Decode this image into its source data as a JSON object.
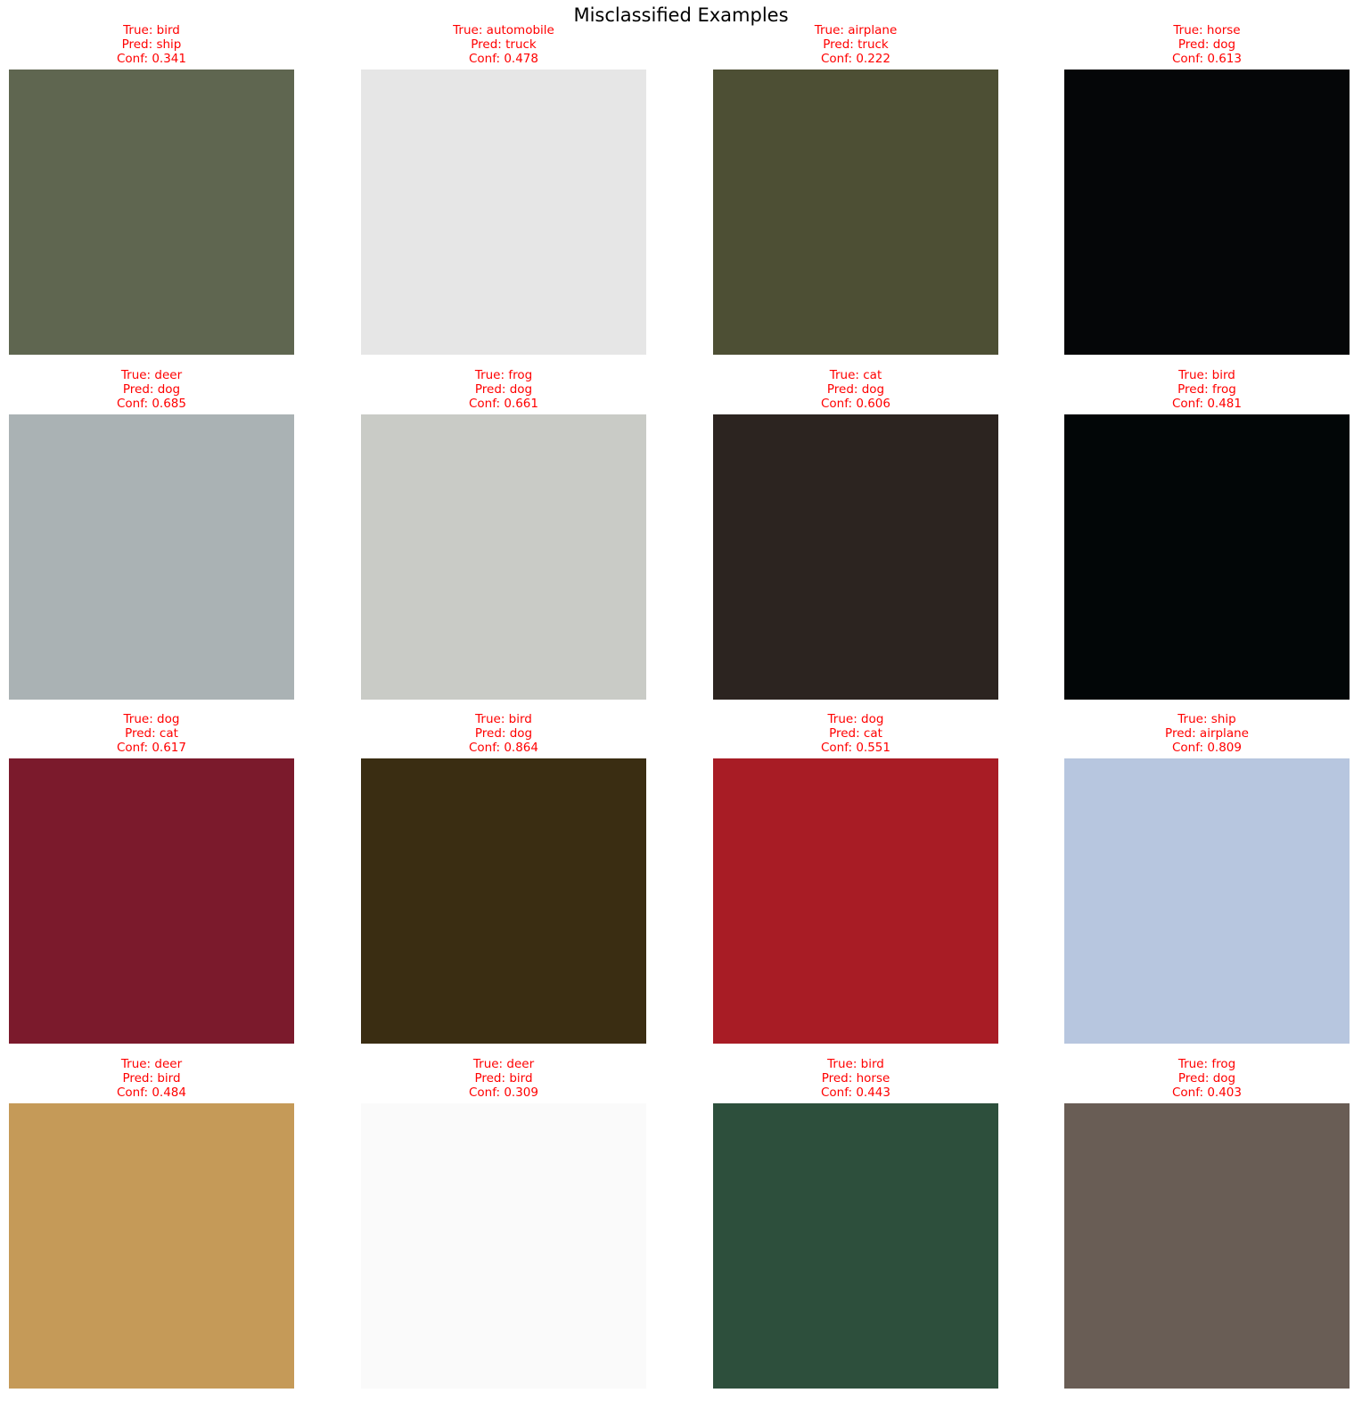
{
  "title": "Misclassified Examples",
  "colors": {
    "caption": "#ff0000",
    "background": "#ffffff"
  },
  "examples": [
    {
      "true_label": "True: bird",
      "pred_label": "Pred: ship",
      "conf_label": "Conf: 0.341",
      "image": "ostrich-face"
    },
    {
      "true_label": "True: automobile",
      "pred_label": "Pred: truck",
      "conf_label": "Conf: 0.478",
      "image": "vintage-car-bw"
    },
    {
      "true_label": "True: airplane",
      "pred_label": "Pred: truck",
      "conf_label": "Conf: 0.222",
      "image": "flying-wing"
    },
    {
      "true_label": "True: horse",
      "pred_label": "Pred: dog",
      "conf_label": "Conf: 0.613",
      "image": "horse-head-dark"
    },
    {
      "true_label": "True: deer",
      "pred_label": "Pred: dog",
      "conf_label": "Conf: 0.685",
      "image": "deer-face"
    },
    {
      "true_label": "True: frog",
      "pred_label": "Pred: dog",
      "conf_label": "Conf: 0.661",
      "image": "frog-on-snow"
    },
    {
      "true_label": "True: cat",
      "pred_label": "Pred: dog",
      "conf_label": "Conf: 0.606",
      "image": "cat-sitting"
    },
    {
      "true_label": "True: bird",
      "pred_label": "Pred: frog",
      "conf_label": "Conf: 0.481",
      "image": "eagle-dark"
    },
    {
      "true_label": "True: dog",
      "pred_label": "Pred: cat",
      "conf_label": "Conf: 0.617",
      "image": "dog-dark-green"
    },
    {
      "true_label": "True: bird",
      "pred_label": "Pred: dog",
      "conf_label": "Conf: 0.864",
      "image": "owl-face"
    },
    {
      "true_label": "True: dog",
      "pred_label": "Pred: cat",
      "conf_label": "Conf: 0.551",
      "image": "dog-red-pillow"
    },
    {
      "true_label": "True: ship",
      "pred_label": "Pred: airplane",
      "conf_label": "Conf: 0.809",
      "image": "ship-sky"
    },
    {
      "true_label": "True: deer",
      "pred_label": "Pred: bird",
      "conf_label": "Conf: 0.484",
      "image": "bison-field"
    },
    {
      "true_label": "True: deer",
      "pred_label": "Pred: bird",
      "conf_label": "Conf: 0.309",
      "image": "deer-white-bg"
    },
    {
      "true_label": "True: bird",
      "pred_label": "Pred: horse",
      "conf_label": "Conf: 0.443",
      "image": "heron-wings"
    },
    {
      "true_label": "True: frog",
      "pred_label": "Pred: dog",
      "conf_label": "Conf: 0.403",
      "image": "frog-sand"
    }
  ]
}
